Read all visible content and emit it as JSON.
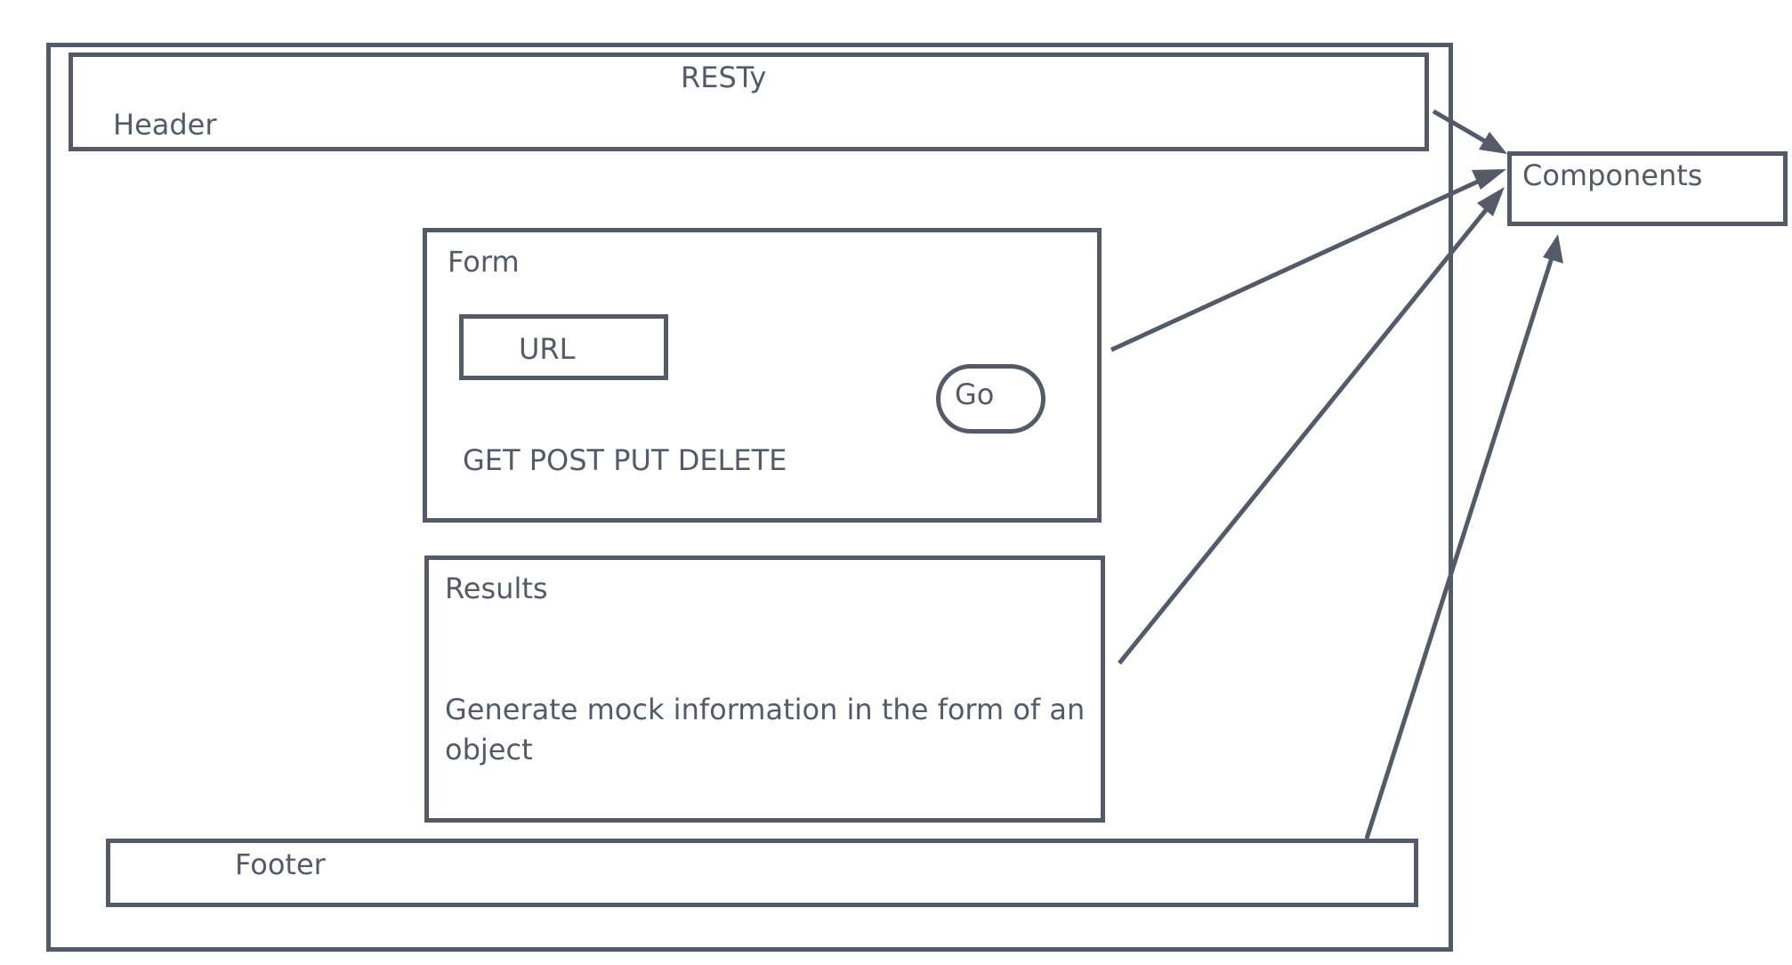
{
  "app": {
    "title": "RESTy"
  },
  "header": {
    "label": "Header",
    "title": "RESTy"
  },
  "components": {
    "label": "Components"
  },
  "form": {
    "label": "Form",
    "url_label": "URL",
    "go_label": "Go",
    "methods_label": "GET POST PUT DELETE"
  },
  "results": {
    "label": "Results",
    "description": "Generate mock information in the form of an object"
  },
  "footer": {
    "label": "Footer"
  },
  "colors": {
    "stroke": "#545a67",
    "background": "#ffffff"
  }
}
